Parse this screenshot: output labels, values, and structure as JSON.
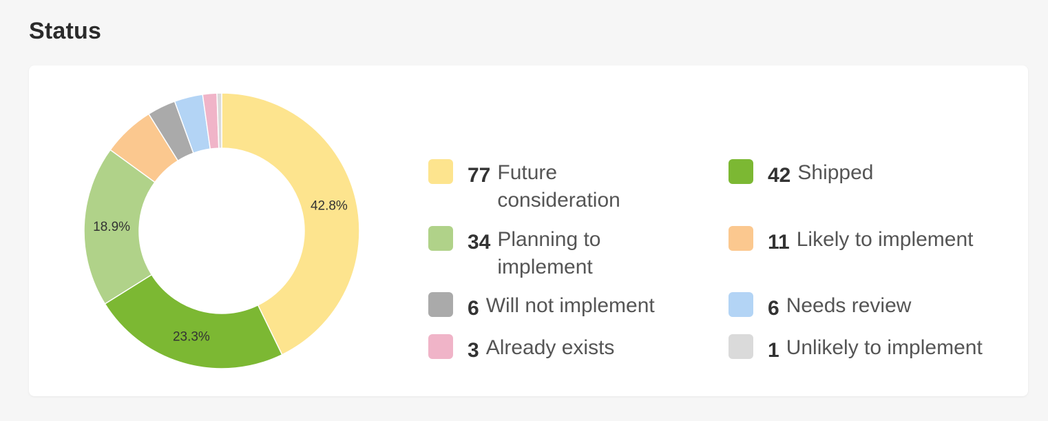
{
  "header": {
    "title": "Status"
  },
  "chart_data": {
    "type": "pie",
    "donut": true,
    "categories": [
      "Future consideration",
      "Shipped",
      "Planning to implement",
      "Likely to implement",
      "Will not implement",
      "Needs review",
      "Already exists",
      "Unlikely to implement"
    ],
    "values": [
      77,
      42,
      34,
      11,
      6,
      6,
      3,
      1
    ],
    "colors": [
      "#fde48e",
      "#7cb833",
      "#b0d289",
      "#fbc88f",
      "#aaaaaa",
      "#b3d4f5",
      "#f0b4c8",
      "#dadada"
    ],
    "data_labels": [
      "42.8%",
      "23.3%",
      "18.9%",
      "",
      "",
      "",
      "",
      ""
    ],
    "legend_placement": "right",
    "legend": [
      {
        "count": "77",
        "label_line1": "Future",
        "label_line2": "consideration",
        "color": "#fde48e"
      },
      {
        "count": "42",
        "label_line1": "Shipped",
        "label_line2": "",
        "color": "#7cb833"
      },
      {
        "count": "34",
        "label_line1": "Planning to",
        "label_line2": "implement",
        "color": "#b0d289"
      },
      {
        "count": "11",
        "label_line1": "Likely to implement",
        "label_line2": "",
        "color": "#fbc88f"
      },
      {
        "count": "6",
        "label_line1": "Will not implement",
        "label_line2": "",
        "color": "#aaaaaa"
      },
      {
        "count": "6",
        "label_line1": "Needs review",
        "label_line2": "",
        "color": "#b3d4f5"
      },
      {
        "count": "3",
        "label_line1": "Already exists",
        "label_line2": "",
        "color": "#f0b4c8"
      },
      {
        "count": "1",
        "label_line1": "Unlikely to implement",
        "label_line2": "",
        "color": "#dadada"
      }
    ]
  }
}
